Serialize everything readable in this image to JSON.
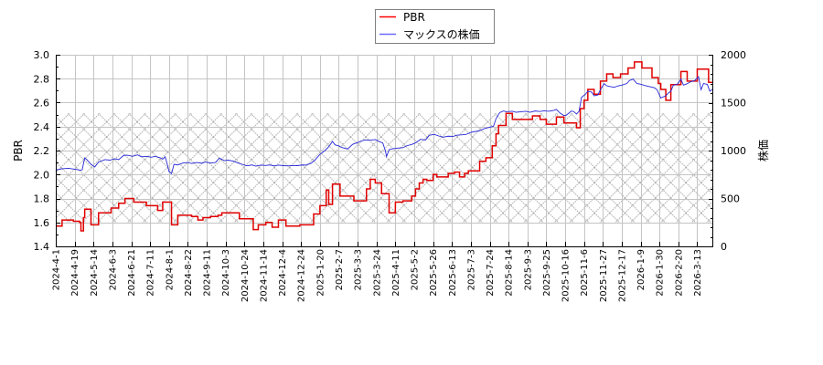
{
  "chart_data": {
    "type": "line",
    "title": "",
    "xlabel": "",
    "ylabel_left": "PBR",
    "ylabel_right": "株価",
    "ylim_left": [
      1.4,
      3.0
    ],
    "ylim_right": [
      0,
      2000
    ],
    "yticks_left": [
      "1.4",
      "1.6",
      "1.8",
      "2.0",
      "2.2",
      "2.4",
      "2.6",
      "2.8",
      "3.0"
    ],
    "yticks_right": [
      "0",
      "500",
      "1000",
      "1500",
      "2000"
    ],
    "grid": true,
    "legend_position": "top-center",
    "x_index_range": [
      0,
      522
    ],
    "x_tick_step": 15,
    "categories": [
      "2024-4-1",
      "2024-4-19",
      "2024-5-14",
      "2024-6-3",
      "2024-6-21",
      "2024-7-11",
      "2024-8-1",
      "2024-8-22",
      "2024-9-11",
      "2024-10-3",
      "2024-10-24",
      "2024-11-14",
      "2024-12-4",
      "2024-12-24",
      "2025-1-20",
      "2025-2-7",
      "2025-3-3",
      "2025-3-24",
      "2025-4-11",
      "2025-5-2",
      "2025-5-26",
      "2025-6-13",
      "2025-7-3",
      "2025-7-24",
      "2025-8-14",
      "2025-9-3",
      "2025-9-25",
      "2025-10-16",
      "2025-11-6",
      "2025-11-27",
      "2025-12-17",
      "2026-1-9",
      "2026-1-30",
      "2026-2-20",
      "2026-3-13"
    ],
    "reference_band": {
      "axis": "left",
      "from": 1.59,
      "to": 2.51,
      "pattern": "crosshatch",
      "color": "#a8a8a8"
    },
    "series": [
      {
        "name": "PBR",
        "axis": "left",
        "style": "step",
        "color": "#e00000",
        "legend_color": "#ff0000",
        "points": [
          [
            0,
            1.57
          ],
          [
            5,
            1.62
          ],
          [
            14,
            1.61
          ],
          [
            19,
            1.6
          ],
          [
            20,
            1.53
          ],
          [
            22,
            1.64
          ],
          [
            23,
            1.71
          ],
          [
            28,
            1.58
          ],
          [
            34,
            1.68
          ],
          [
            44,
            1.72
          ],
          [
            50,
            1.76
          ],
          [
            55,
            1.8
          ],
          [
            62,
            1.77
          ],
          [
            72,
            1.74
          ],
          [
            81,
            1.7
          ],
          [
            85,
            1.77
          ],
          [
            92,
            1.58
          ],
          [
            97,
            1.66
          ],
          [
            108,
            1.65
          ],
          [
            113,
            1.62
          ],
          [
            117,
            1.64
          ],
          [
            123,
            1.65
          ],
          [
            129,
            1.66
          ],
          [
            132,
            1.68
          ],
          [
            146,
            1.63
          ],
          [
            157,
            1.54
          ],
          [
            161,
            1.58
          ],
          [
            167,
            1.6
          ],
          [
            172,
            1.56
          ],
          [
            177,
            1.62
          ],
          [
            183,
            1.57
          ],
          [
            194,
            1.58
          ],
          [
            205,
            1.67
          ],
          [
            210,
            1.74
          ],
          [
            215,
            1.87
          ],
          [
            217,
            1.75
          ],
          [
            220,
            1.92
          ],
          [
            226,
            1.82
          ],
          [
            237,
            1.78
          ],
          [
            247,
            1.88
          ],
          [
            250,
            1.96
          ],
          [
            254,
            1.93
          ],
          [
            259,
            1.84
          ],
          [
            265,
            1.68
          ],
          [
            270,
            1.77
          ],
          [
            276,
            1.78
          ],
          [
            283,
            1.82
          ],
          [
            286,
            1.88
          ],
          [
            289,
            1.93
          ],
          [
            292,
            1.96
          ],
          [
            295,
            1.95
          ],
          [
            300,
            2.0
          ],
          [
            303,
            1.98
          ],
          [
            312,
            2.01
          ],
          [
            317,
            2.02
          ],
          [
            321,
            1.98
          ],
          [
            325,
            2.01
          ],
          [
            328,
            2.03
          ],
          [
            337,
            2.11
          ],
          [
            342,
            2.14
          ],
          [
            347,
            2.24
          ],
          [
            350,
            2.34
          ],
          [
            352,
            2.41
          ],
          [
            358,
            2.51
          ],
          [
            363,
            2.46
          ],
          [
            379,
            2.49
          ],
          [
            385,
            2.46
          ],
          [
            390,
            2.42
          ],
          [
            398,
            2.48
          ],
          [
            404,
            2.43
          ],
          [
            414,
            2.39
          ],
          [
            417,
            2.55
          ],
          [
            420,
            2.62
          ],
          [
            423,
            2.71
          ],
          [
            428,
            2.67
          ],
          [
            433,
            2.78
          ],
          [
            438,
            2.84
          ],
          [
            443,
            2.81
          ],
          [
            449,
            2.84
          ],
          [
            455,
            2.89
          ],
          [
            460,
            2.94
          ],
          [
            466,
            2.89
          ],
          [
            474,
            2.81
          ],
          [
            479,
            2.76
          ],
          [
            481,
            2.71
          ],
          [
            485,
            2.62
          ],
          [
            489,
            2.75
          ],
          [
            497,
            2.86
          ],
          [
            502,
            2.78
          ],
          [
            510,
            2.88
          ],
          [
            519,
            2.77
          ],
          [
            522,
            2.77
          ]
        ]
      },
      {
        "name": "マックスの株価",
        "axis": "right",
        "style": "line",
        "color": "#2626d8",
        "legend_color": "#6a6aff",
        "points": [
          [
            0,
            781
          ],
          [
            1,
            800
          ],
          [
            5,
            810
          ],
          [
            10,
            815
          ],
          [
            15,
            805
          ],
          [
            20,
            795
          ],
          [
            21,
            800
          ],
          [
            23,
            924
          ],
          [
            25,
            900
          ],
          [
            28,
            857
          ],
          [
            31,
            829
          ],
          [
            34,
            880
          ],
          [
            39,
            905
          ],
          [
            43,
            900
          ],
          [
            47,
            915
          ],
          [
            50,
            905
          ],
          [
            54,
            950
          ],
          [
            57,
            952
          ],
          [
            61,
            940
          ],
          [
            65,
            955
          ],
          [
            68,
            935
          ],
          [
            72,
            940
          ],
          [
            76,
            930
          ],
          [
            79,
            940
          ],
          [
            83,
            925
          ],
          [
            85,
            910
          ],
          [
            87,
            935
          ],
          [
            89,
            840
          ],
          [
            90,
            781
          ],
          [
            92,
            760
          ],
          [
            94,
            857
          ],
          [
            97,
            850
          ],
          [
            101,
            870
          ],
          [
            105,
            876
          ],
          [
            108,
            865
          ],
          [
            112,
            876
          ],
          [
            116,
            868
          ],
          [
            119,
            880
          ],
          [
            123,
            870
          ],
          [
            127,
            876
          ],
          [
            130,
            921
          ],
          [
            134,
            895
          ],
          [
            137,
            900
          ],
          [
            141,
            890
          ],
          [
            145,
            870
          ],
          [
            148,
            857
          ],
          [
            152,
            841
          ],
          [
            156,
            850
          ],
          [
            159,
            838
          ],
          [
            163,
            848
          ],
          [
            167,
            845
          ],
          [
            170,
            850
          ],
          [
            174,
            840
          ],
          [
            177,
            848
          ],
          [
            181,
            843
          ],
          [
            185,
            840
          ],
          [
            188,
            845
          ],
          [
            192,
            843
          ],
          [
            196,
            850
          ],
          [
            199,
            848
          ],
          [
            203,
            867
          ],
          [
            206,
            900
          ],
          [
            210,
            960
          ],
          [
            214,
            1000
          ],
          [
            217,
            1040
          ],
          [
            220,
            1095
          ],
          [
            222,
            1060
          ],
          [
            225,
            1048
          ],
          [
            228,
            1030
          ],
          [
            232,
            1016
          ],
          [
            236,
            1065
          ],
          [
            239,
            1079
          ],
          [
            243,
            1100
          ],
          [
            246,
            1111
          ],
          [
            250,
            1108
          ],
          [
            254,
            1115
          ],
          [
            257,
            1095
          ],
          [
            260,
            1079
          ],
          [
            262,
            1000
          ],
          [
            263,
            937
          ],
          [
            265,
            1010
          ],
          [
            268,
            1020
          ],
          [
            272,
            1026
          ],
          [
            276,
            1030
          ],
          [
            279,
            1050
          ],
          [
            283,
            1064
          ],
          [
            286,
            1080
          ],
          [
            290,
            1117
          ],
          [
            294,
            1110
          ],
          [
            297,
            1160
          ],
          [
            301,
            1168
          ],
          [
            305,
            1150
          ],
          [
            308,
            1140
          ],
          [
            312,
            1150
          ],
          [
            316,
            1148
          ],
          [
            319,
            1160
          ],
          [
            323,
            1165
          ],
          [
            326,
            1168
          ],
          [
            330,
            1190
          ],
          [
            334,
            1200
          ],
          [
            337,
            1206
          ],
          [
            341,
            1230
          ],
          [
            345,
            1244
          ],
          [
            348,
            1254
          ],
          [
            350,
            1333
          ],
          [
            353,
            1397
          ],
          [
            356,
            1413
          ],
          [
            358,
            1405
          ],
          [
            363,
            1410
          ],
          [
            366,
            1400
          ],
          [
            370,
            1405
          ],
          [
            374,
            1410
          ],
          [
            377,
            1400
          ],
          [
            381,
            1413
          ],
          [
            385,
            1408
          ],
          [
            388,
            1415
          ],
          [
            392,
            1410
          ],
          [
            396,
            1420
          ],
          [
            398,
            1429
          ],
          [
            401,
            1390
          ],
          [
            404,
            1365
          ],
          [
            406,
            1370
          ],
          [
            410,
            1413
          ],
          [
            412,
            1405
          ],
          [
            414,
            1381
          ],
          [
            416,
            1410
          ],
          [
            418,
            1556
          ],
          [
            421,
            1587
          ],
          [
            423,
            1619
          ],
          [
            426,
            1610
          ],
          [
            428,
            1571
          ],
          [
            431,
            1580
          ],
          [
            433,
            1635
          ],
          [
            436,
            1698
          ],
          [
            438,
            1676
          ],
          [
            441,
            1667
          ],
          [
            444,
            1660
          ],
          [
            447,
            1675
          ],
          [
            450,
            1683
          ],
          [
            454,
            1700
          ],
          [
            456,
            1730
          ],
          [
            459,
            1746
          ],
          [
            462,
            1700
          ],
          [
            465,
            1692
          ],
          [
            468,
            1680
          ],
          [
            472,
            1667
          ],
          [
            476,
            1655
          ],
          [
            478,
            1635
          ],
          [
            481,
            1549
          ],
          [
            483,
            1560
          ],
          [
            485,
            1571
          ],
          [
            487,
            1600
          ],
          [
            489,
            1619
          ],
          [
            491,
            1683
          ],
          [
            494,
            1690
          ],
          [
            497,
            1746
          ],
          [
            499,
            1683
          ],
          [
            502,
            1698
          ],
          [
            505,
            1720
          ],
          [
            508,
            1730
          ],
          [
            511,
            1771
          ],
          [
            513,
            1635
          ],
          [
            515,
            1700
          ],
          [
            518,
            1690
          ],
          [
            520,
            1619
          ],
          [
            522,
            1640
          ]
        ]
      }
    ]
  }
}
